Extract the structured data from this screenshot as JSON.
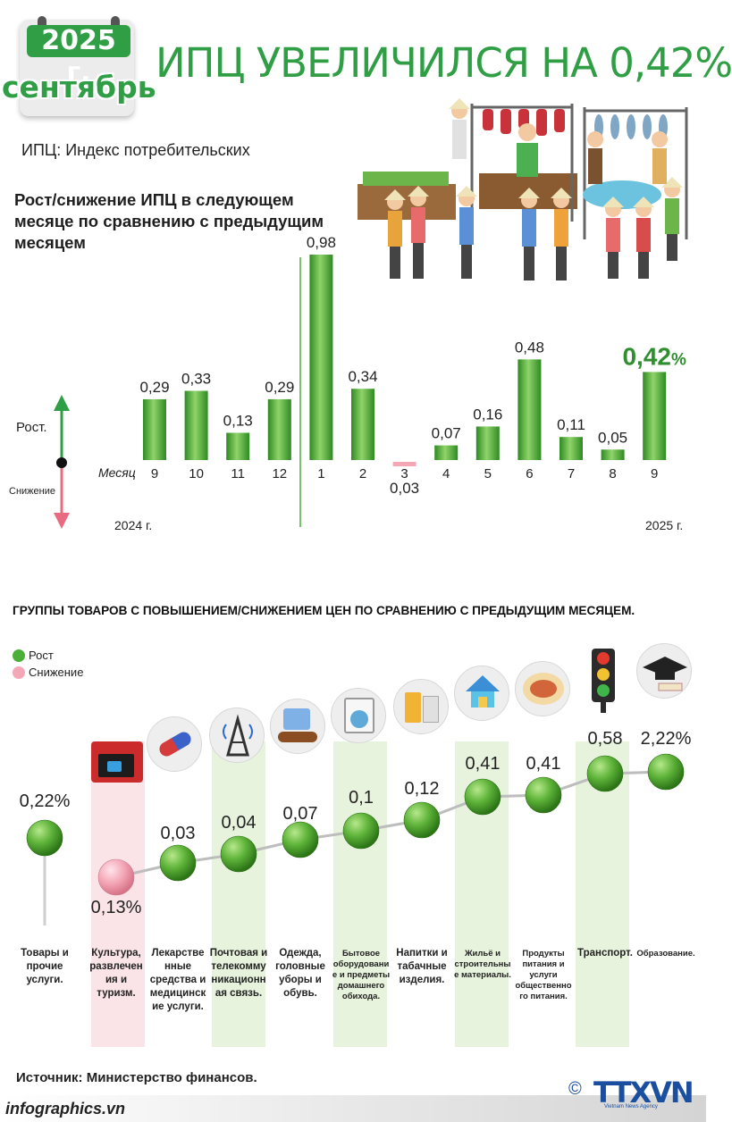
{
  "header": {
    "year": "2025 г.",
    "month": "сентябрь",
    "title": "ИПЦ УВЕЛИЧИЛСЯ НА 0,42%"
  },
  "subtitle": "ИПЦ: Индекс потребительских",
  "chart_title": "Рост/снижение ИПЦ в следующем месяце по сравнению с предыдущим месяцем",
  "axis": {
    "month_word": "Месяц",
    "up_label": "Рост.",
    "down_label": "Снижение",
    "year_left": "2024 г.",
    "year_right": "2025 г."
  },
  "chart_data": [
    {
      "type": "bar",
      "title": "Рост/снижение ИПЦ в следующем месяце по сравнению с предыдущим месяцем",
      "categories": [
        "9",
        "10",
        "11",
        "12",
        "1",
        "2",
        "3",
        "4",
        "5",
        "6",
        "7",
        "8",
        "9"
      ],
      "values": [
        0.29,
        0.33,
        0.13,
        0.29,
        0.98,
        0.34,
        -0.03,
        0.07,
        0.16,
        0.48,
        0.11,
        0.05,
        0.42
      ],
      "value_labels": [
        "0,29",
        "0,33",
        "0,13",
        "0,29",
        "0,98",
        "0,34",
        "0,03",
        "0,07",
        "0,16",
        "0,48",
        "0,11",
        "0,05",
        "0,42"
      ],
      "highlight_suffix": "%",
      "xlabel": "Месяц",
      "colors": {
        "positive": "#4caf3a",
        "negative": "#f4a7b5",
        "highlight_text": "#2f8f2f"
      }
    },
    {
      "type": "scatter",
      "title": "ГРУППЫ ТОВАРОВ С ПОВЫШЕНИЕМ/СНИЖЕНИЕМ ЦЕН ПО СРАВНЕНИЮ С ПРЕДЫДУЩИМ МЕСЯЦЕМ.",
      "categories": [
        "Товары и прочие услуги.",
        "Культура, развлечения и туризм.",
        "Лекарственные средства и медицинские услуги.",
        "Почтовая и телекоммуникационная связь.",
        "Одежда, головные уборы и обувь.",
        "Бытовое оборудование и предметы домашнего обихода.",
        "Напитки и табачные изделия.",
        "Жильё и строительные материалы.",
        "Продукты питания и услуги общественного питания.",
        "Транспорт.",
        "Образование."
      ],
      "values": [
        0.22,
        -0.13,
        0.03,
        0.04,
        0.07,
        0.1,
        0.12,
        0.41,
        0.41,
        0.58,
        2.22
      ],
      "value_labels": [
        "0,22%",
        "0,13%",
        "0,03",
        "0,04",
        "0,07",
        "0,1",
        "0,12",
        "0,41",
        "0,41",
        "0,58",
        "2,22%"
      ],
      "legend": [
        {
          "name": "Рост",
          "color": "#4caf3a"
        },
        {
          "name": "Снижение",
          "color": "#f4a7b5"
        }
      ]
    }
  ],
  "groups_title": "ГРУППЫ ТОВАРОВ С ПОВЫШЕНИЕМ/СНИЖЕНИЕМ ЦЕН ПО СРАВНЕНИЮ С ПРЕДЫДУЩИМ МЕСЯЦЕМ.",
  "legend": {
    "up": "Рост",
    "down": "Снижение"
  },
  "category_labels": [
    "Товары и прочие услуги.",
    "Культура, развлечен ия и туризм.",
    "Лекарстве нные средства и медицинск ие услуги.",
    "Почтовая и телекомму никационн ая связь.",
    "Одежда, головные уборы и обувь.",
    "Бытовое оборудовани е и предметы домашнего обихода.",
    "Напитки и табачные изделия.",
    "Жильё и строительны е материалы.",
    "Продукты питания и услуги общественно го питания.",
    "Транспорт.",
    "Образование."
  ],
  "source": "Источник: Министерство финансов.",
  "footer": {
    "site": "infographics.vn",
    "logo": "TTXVN",
    "logo_sub": "Vietnam News Agency",
    "copyright": "©"
  },
  "icons": [
    "market-scene-illustration",
    "movie-clapper-icon",
    "pills-icon",
    "telecom-tower-icon",
    "clothes-shoes-icon",
    "washing-machine-icon",
    "drinks-cigarettes-icon",
    "house-faucet-icon",
    "food-plate-icon",
    "traffic-light-icon",
    "graduation-cap-icon"
  ]
}
